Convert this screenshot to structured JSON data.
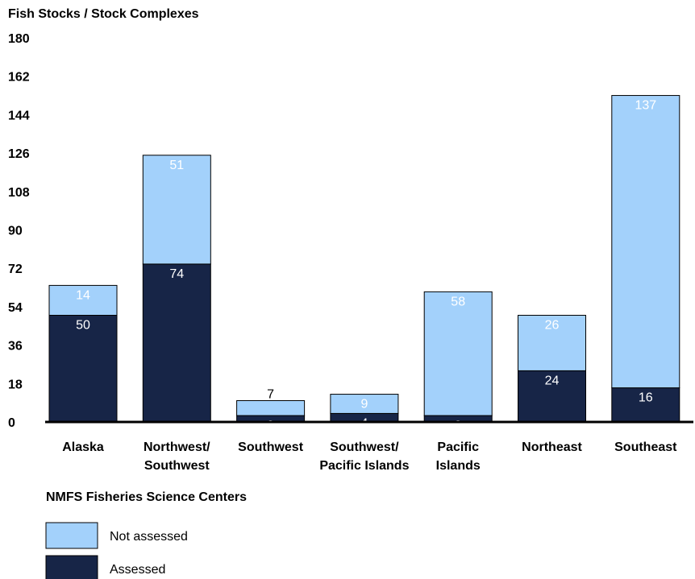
{
  "chart_data": {
    "type": "bar",
    "stacked": true,
    "title": "Fish Stocks / Stock Complexes",
    "xlabel": "NMFS Fisheries Science Centers",
    "ylabel": "",
    "ylim": [
      0,
      180
    ],
    "yticks": [
      "0",
      "18",
      "36",
      "54",
      "72",
      "90",
      "108",
      "126",
      "144",
      "162",
      "180"
    ],
    "categories": [
      [
        "Alaska"
      ],
      [
        "Northwest/",
        "Southwest"
      ],
      [
        "Southwest"
      ],
      [
        "Southwest/",
        "Pacific Islands"
      ],
      [
        "Pacific",
        "Islands"
      ],
      [
        "Northeast"
      ],
      [
        "Southeast"
      ]
    ],
    "series": [
      {
        "name": "Assessed",
        "color": "#172547",
        "values": [
          50,
          74,
          3,
          4,
          3,
          24,
          16
        ]
      },
      {
        "name": "Not assessed",
        "color": "#a3d1fb",
        "values": [
          14,
          51,
          7,
          9,
          58,
          26,
          137
        ]
      }
    ],
    "grid": false,
    "legend": {
      "placement": "bottom-left",
      "order": [
        "Not assessed",
        "Assessed"
      ]
    }
  }
}
